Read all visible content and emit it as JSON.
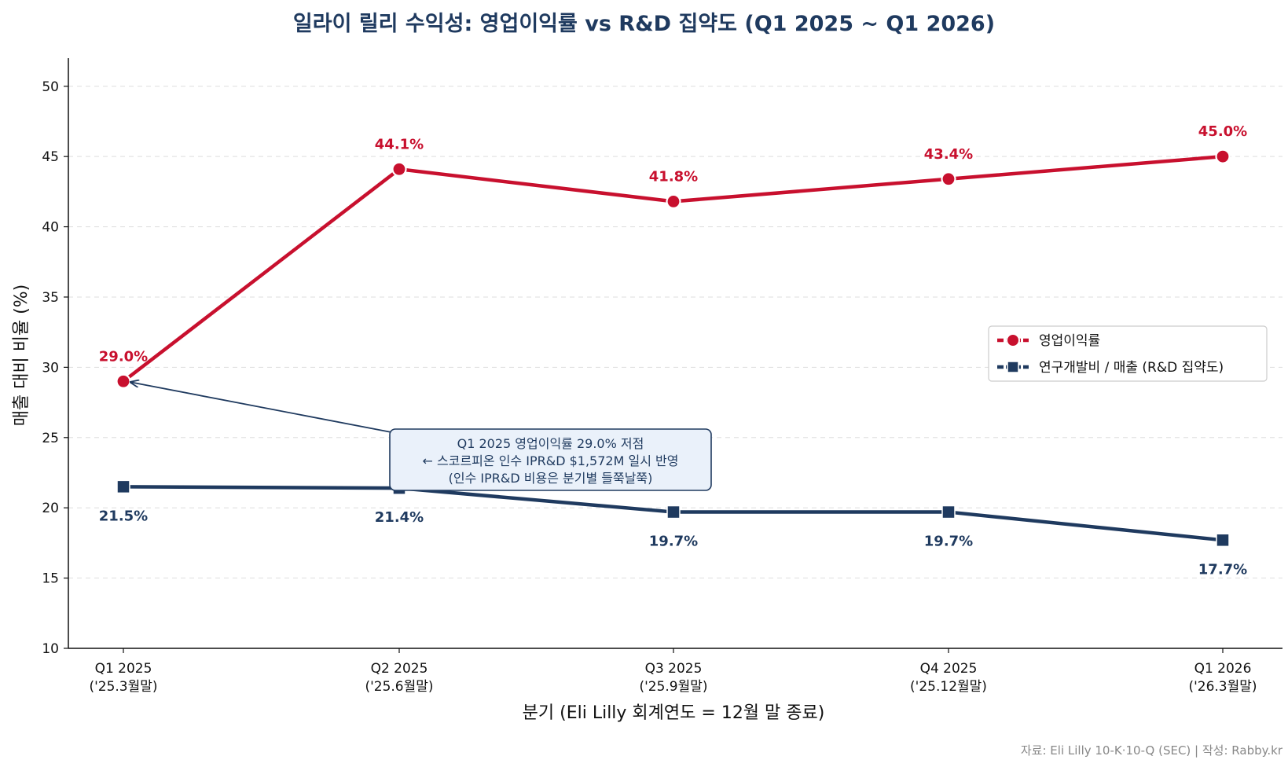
{
  "chart_data": {
    "type": "line",
    "title": "일라이 릴리 수익성: 영업이익률 vs R&D 집약도 (Q1 2025 ~ Q1 2026)",
    "xlabel": "분기 (Eli Lilly 회계연도 = 12월 말 종료)",
    "ylabel": "매출 대비 비율 (%)",
    "categories": [
      [
        "Q1 2025",
        "('25.3월말)"
      ],
      [
        "Q2 2025",
        "('25.6월말)"
      ],
      [
        "Q3 2025",
        "('25.9월말)"
      ],
      [
        "Q4 2025",
        "('25.12월말)"
      ],
      [
        "Q1 2026",
        "('26.3월말)"
      ]
    ],
    "ylim": [
      10,
      52
    ],
    "yticks": [
      10,
      15,
      20,
      25,
      30,
      35,
      40,
      45,
      50
    ],
    "grid": "horizontal dashed",
    "legend_position": "center-right",
    "series": [
      {
        "name": "영업이익률",
        "values": [
          29.0,
          44.1,
          41.8,
          43.4,
          45.0
        ],
        "labels": [
          "29.0%",
          "44.1%",
          "41.8%",
          "43.4%",
          "45.0%"
        ],
        "color": "#c8102e",
        "marker": "circle"
      },
      {
        "name": "연구개발비 / 매출 (R&D 집약도)",
        "values": [
          21.5,
          21.4,
          19.7,
          19.7,
          17.7
        ],
        "labels": [
          "21.5%",
          "21.4%",
          "19.7%",
          "19.7%",
          "17.7%"
        ],
        "color": "#1f3a5f",
        "marker": "square"
      }
    ],
    "annotation": {
      "target_category_index": 0,
      "target_series_index": 0,
      "lines": [
        "Q1 2025 영업이익률 29.0% 저점",
        "← 스코르피온 인수 IPR&D $1,572M 일시 반영",
        "(인수 IPR&D 비용은 분기별 들쭉날쭉)"
      ]
    },
    "source": "자료: Eli Lilly 10-K·10-Q (SEC) | 작성: Rabby.kr"
  }
}
